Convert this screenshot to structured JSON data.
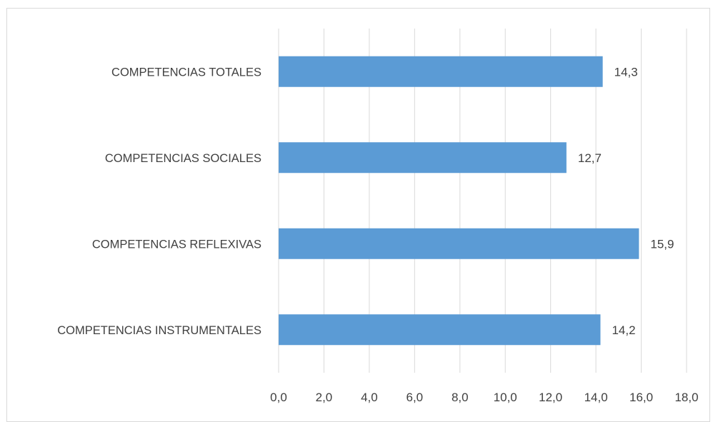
{
  "chart_data": {
    "type": "bar",
    "orientation": "horizontal",
    "categories": [
      "COMPETENCIAS TOTALES",
      "COMPETENCIAS SOCIALES",
      "COMPETENCIAS REFLEXIVAS",
      "COMPETENCIAS INSTRUMENTALES"
    ],
    "values": [
      14.3,
      12.7,
      15.9,
      14.2
    ],
    "data_labels": [
      "14,3",
      "12,7",
      "15,9",
      "14,2"
    ],
    "x_ticks": [
      "0,0",
      "2,0",
      "4,0",
      "6,0",
      "8,0",
      "10,0",
      "12,0",
      "14,0",
      "16,0",
      "18,0"
    ],
    "xlim": [
      0,
      18
    ],
    "grid": "vertical",
    "legend": "none",
    "title": "",
    "xlabel": "",
    "ylabel": "",
    "bar_color": "#5b9bd5",
    "grid_color": "#d9d9d9"
  }
}
